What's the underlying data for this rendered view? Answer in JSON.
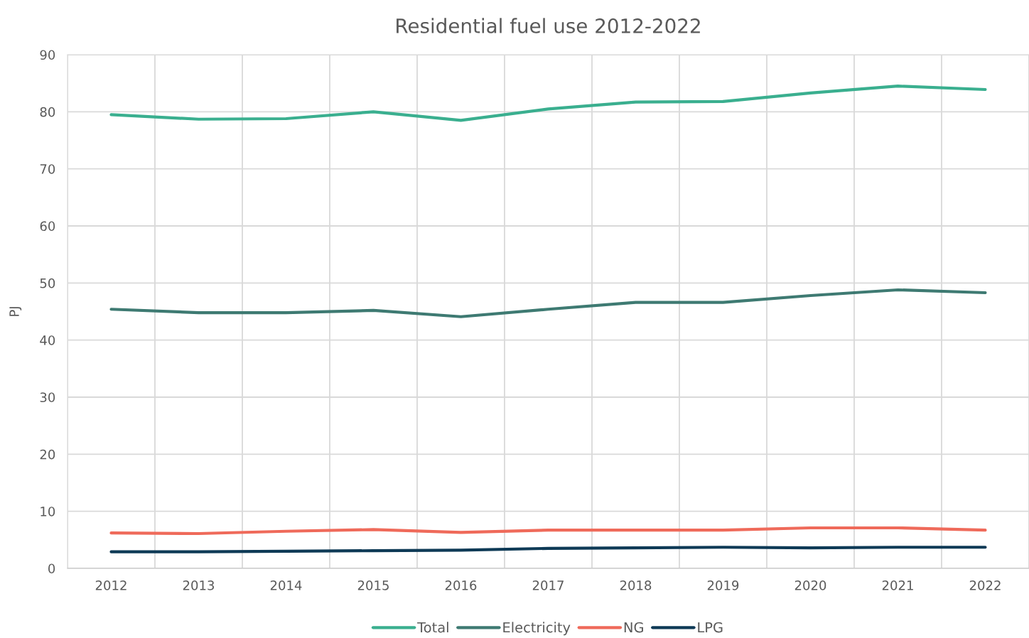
{
  "chart_data": {
    "type": "line",
    "title": "Residential fuel use 2012-2022",
    "ylabel": "PJ",
    "categories": [
      "2012",
      "2013",
      "2014",
      "2015",
      "2016",
      "2017",
      "2018",
      "2019",
      "2020",
      "2021",
      "2022"
    ],
    "series": [
      {
        "name": "Total",
        "color": "#3aaf8f",
        "values": [
          79.5,
          78.7,
          78.8,
          80.0,
          78.5,
          80.5,
          81.7,
          81.8,
          83.3,
          84.5,
          83.9
        ]
      },
      {
        "name": "Electricity",
        "color": "#3e7a72",
        "values": [
          45.4,
          44.8,
          44.8,
          45.2,
          44.1,
          45.4,
          46.6,
          46.6,
          47.8,
          48.8,
          48.3
        ]
      },
      {
        "name": "NG",
        "color": "#ef6a5a",
        "values": [
          6.2,
          6.1,
          6.5,
          6.8,
          6.3,
          6.7,
          6.7,
          6.7,
          7.1,
          7.1,
          6.7
        ]
      },
      {
        "name": "LPG",
        "color": "#0e3a56",
        "values": [
          2.9,
          2.9,
          3.0,
          3.1,
          3.2,
          3.5,
          3.6,
          3.7,
          3.6,
          3.7,
          3.7
        ]
      }
    ],
    "ylim": [
      0,
      90
    ],
    "yticks": [
      0,
      10,
      20,
      30,
      40,
      50,
      60,
      70,
      80,
      90
    ],
    "grid": true,
    "legend": "bottom"
  }
}
